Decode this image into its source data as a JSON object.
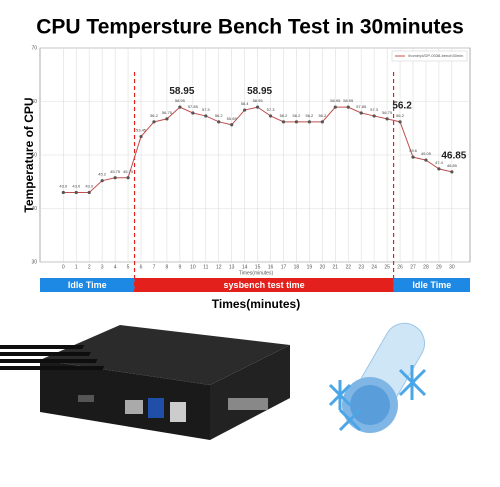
{
  "chart_data": {
    "type": "line",
    "title": "CPU Tempersture Bench Test in 30minutes",
    "y_label": "Temperature of CPU",
    "x_label": "Times(minutes)",
    "x_label_small": "Times(minutes)",
    "x": [
      0,
      1,
      2,
      3,
      4,
      5,
      6,
      7,
      8,
      9,
      10,
      11,
      12,
      13,
      14,
      15,
      16,
      17,
      18,
      19,
      20,
      21,
      22,
      23,
      24,
      25,
      26,
      27,
      28,
      29,
      30
    ],
    "series": [
      {
        "name": "/home/pi/DP-0038-bench30min",
        "color": "#c0504d",
        "values": [
          43.0,
          43.0,
          43.0,
          45.2,
          45.75,
          45.75,
          53.45,
          56.2,
          56.75,
          58.95,
          57.85,
          57.3,
          56.2,
          55.65,
          58.4,
          58.95,
          57.3,
          56.2,
          56.2,
          56.2,
          56.2,
          58.95,
          58.95,
          57.85,
          57.3,
          56.75,
          56.2,
          49.6,
          49.05,
          47.4,
          46.85
        ],
        "value_labels": [
          "43.0",
          "43.0",
          "43.0",
          "45.2",
          "45.75",
          "45.75",
          "53.45",
          "56.2",
          "56.75",
          "58.95",
          "57.85",
          "57.3",
          "56.2",
          "55.65",
          "58.4",
          "58.95",
          "57.3",
          "56.2",
          "56.2",
          "56.2",
          "56.2",
          "58.95",
          "58.95",
          "57.85",
          "57.3",
          "56.75",
          "56.2",
          "49.6",
          "49.05",
          "47.4",
          "46.85"
        ]
      }
    ],
    "emphasized_points": [
      9,
      15,
      26,
      30
    ],
    "xlim": [
      -1.8,
      31.4
    ],
    "xticks": [
      0,
      1,
      2,
      3,
      4,
      5,
      6,
      7,
      8,
      9,
      10,
      11,
      12,
      13,
      14,
      15,
      16,
      17,
      18,
      19,
      20,
      21,
      22,
      23,
      24,
      25,
      26,
      27,
      28,
      29,
      30
    ],
    "ylim": [
      30,
      70
    ],
    "yticks": [
      30,
      40,
      50,
      60,
      70
    ],
    "grid": true,
    "legend": "upper right",
    "phases": [
      {
        "label": "Idle Time",
        "x": [
          0,
          5
        ],
        "color": "#1e88e5"
      },
      {
        "label": "sysbench test time",
        "x": [
          6,
          25
        ],
        "color": "#e3201b"
      },
      {
        "label": "Idle Time",
        "x": [
          26,
          30
        ],
        "color": "#1e88e5"
      }
    ]
  }
}
